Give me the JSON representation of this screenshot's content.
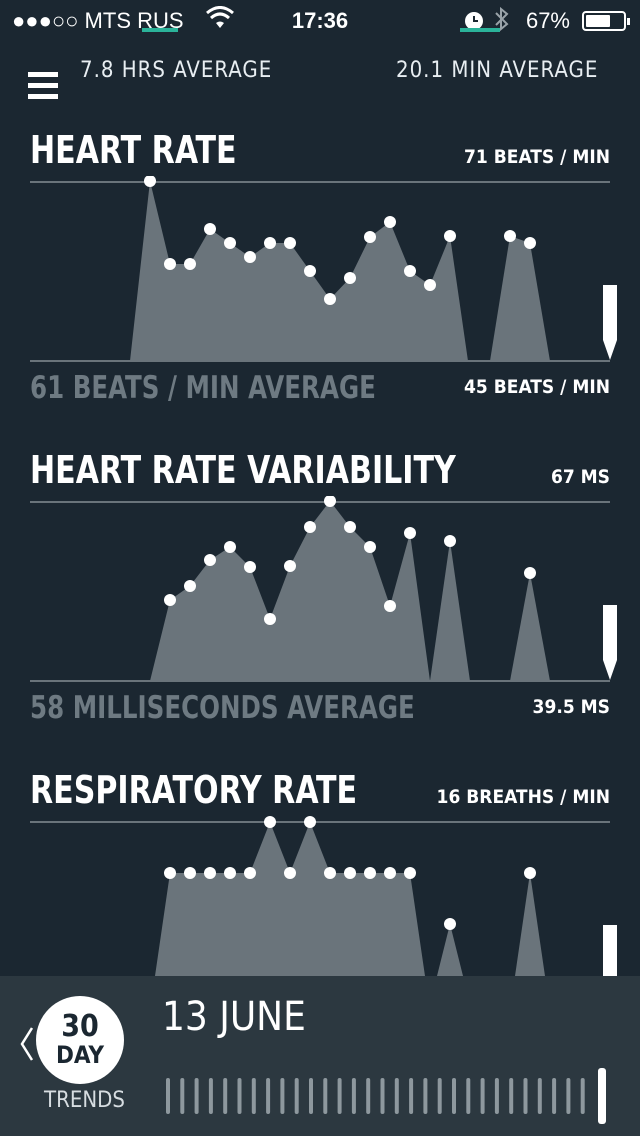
{
  "status": {
    "carrier": "●●●○○ MTS RUS",
    "time": "17:36",
    "battery": "67%",
    "battery_level": 0.67
  },
  "summary": {
    "left": "7.8 HRS  AVERAGE",
    "right": "20.1 MIN  AVERAGE"
  },
  "sections": [
    {
      "title": "HEART RATE",
      "max_label": "71 BEATS / MIN",
      "avg_label": "61 BEATS / MIN AVERAGE",
      "min_label": "45 BEATS / MIN"
    },
    {
      "title": "HEART RATE VARIABILITY",
      "max_label": "67 MS",
      "avg_label": "58 MILLISECONDS AVERAGE",
      "min_label": "39.5 MS"
    },
    {
      "title": "RESPIRATORY RATE",
      "max_label": "16 BREATHS / MIN"
    }
  ],
  "bottom": {
    "back_icon": "chevron-left-icon",
    "trend_number": "30",
    "trend_unit": "DAY",
    "trends_label": "TRENDS",
    "date": "13 JUNE"
  },
  "colors": {
    "background": "#1b2731",
    "area_fill": "#6a747b",
    "bottom_bar": "#2c3840",
    "accent": "#2bb39a"
  }
}
